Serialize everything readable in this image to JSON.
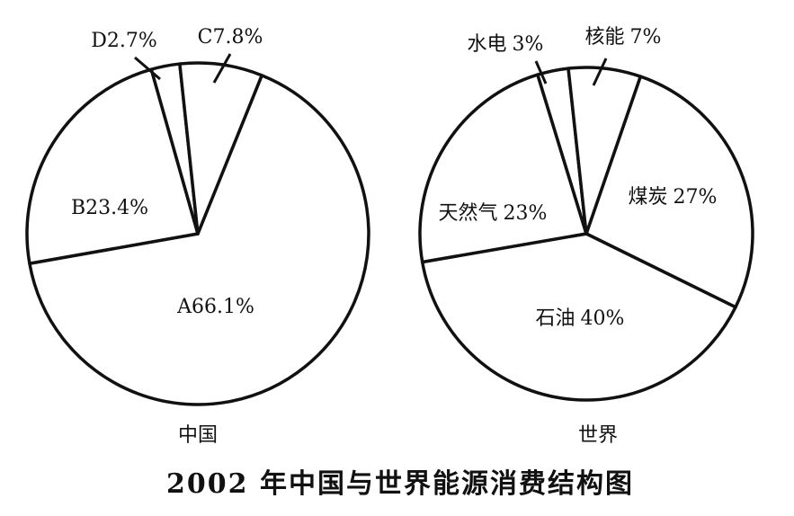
{
  "title": "2002 年中国与世界能源消费结构图",
  "chart_data": [
    {
      "type": "pie",
      "title": "中国",
      "categories": [
        "A",
        "B",
        "D",
        "C"
      ],
      "values": [
        66.1,
        23.4,
        2.7,
        7.8
      ],
      "value_labels": [
        "66.1%",
        "23.4%",
        "2.7%",
        "7.8%"
      ],
      "color": "#ffffff"
    },
    {
      "type": "pie",
      "title": "世界",
      "categories": [
        "煤炭",
        "石油",
        "天然气",
        "水电",
        "核能"
      ],
      "values": [
        27,
        40,
        23,
        3,
        7
      ],
      "value_labels": [
        "27%",
        "40%",
        "23%",
        "3%",
        "7%"
      ],
      "color": "#ffffff"
    }
  ]
}
